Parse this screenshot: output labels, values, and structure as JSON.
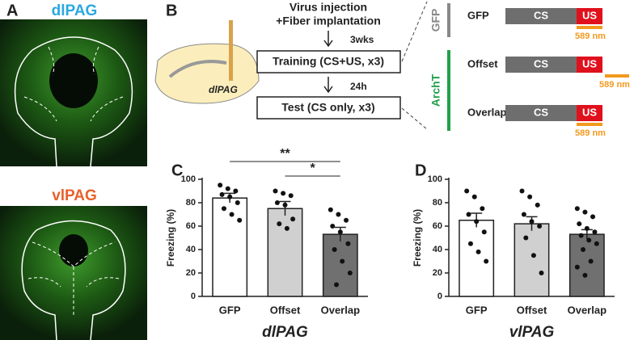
{
  "panel_a": {
    "label": "A",
    "images": [
      "dlPAG",
      "vlPAG"
    ]
  },
  "panel_b": {
    "label": "B",
    "brain_label": "dlPAG",
    "surgery": [
      "Virus injection",
      "+Fiber implantation"
    ],
    "intervals": [
      "3wks",
      "24h"
    ],
    "sessions": [
      "Training (CS+US, x3)",
      "Test (CS only, x3)"
    ],
    "groups": [
      "GFP",
      "ArchT"
    ],
    "conditions": [
      {
        "name": "GFP",
        "cs": "CS",
        "us": "US",
        "light": "589 nm"
      },
      {
        "name": "Offset",
        "cs": "CS",
        "us": "US",
        "light": "589 nm"
      },
      {
        "name": "Overlap",
        "cs": "CS",
        "us": "US",
        "light": "589 nm"
      }
    ]
  },
  "chart_data": [
    {
      "type": "bar",
      "panel": "C",
      "ylabel": "Freezing (%)",
      "xlabel": "dlPAG",
      "categories": [
        "GFP",
        "Offset",
        "Overlap"
      ],
      "values": [
        84,
        75,
        53
      ],
      "errors": [
        4,
        6,
        6
      ],
      "points": [
        [
          95,
          92,
          90,
          87,
          85,
          80,
          75,
          70,
          65
        ],
        [
          90,
          88,
          86,
          80,
          78,
          66,
          62,
          58
        ],
        [
          74,
          70,
          65,
          60,
          55,
          45,
          40,
          30,
          20,
          10
        ]
      ],
      "colors": [
        "#ffffff",
        "#d0d0d0",
        "#707070"
      ],
      "ylim": [
        0,
        100
      ],
      "yticks": [
        0,
        20,
        40,
        60,
        80,
        100
      ],
      "annotations": [
        "**",
        "*"
      ]
    },
    {
      "type": "bar",
      "panel": "D",
      "ylabel": "Freezing (%)",
      "xlabel": "vlPAG",
      "categories": [
        "GFP",
        "Offset",
        "Overlap"
      ],
      "values": [
        65,
        62,
        53
      ],
      "errors": [
        6,
        6,
        4
      ],
      "points": [
        [
          90,
          85,
          75,
          70,
          64,
          55,
          45,
          38,
          30
        ],
        [
          90,
          85,
          78,
          70,
          64,
          60,
          50,
          35,
          20
        ],
        [
          75,
          72,
          68,
          62,
          58,
          55,
          52,
          48,
          45,
          40,
          30,
          25,
          18
        ]
      ],
      "colors": [
        "#ffffff",
        "#d0d0d0",
        "#707070"
      ],
      "ylim": [
        0,
        100
      ],
      "yticks": [
        0,
        20,
        40,
        60,
        80,
        100
      ]
    }
  ]
}
